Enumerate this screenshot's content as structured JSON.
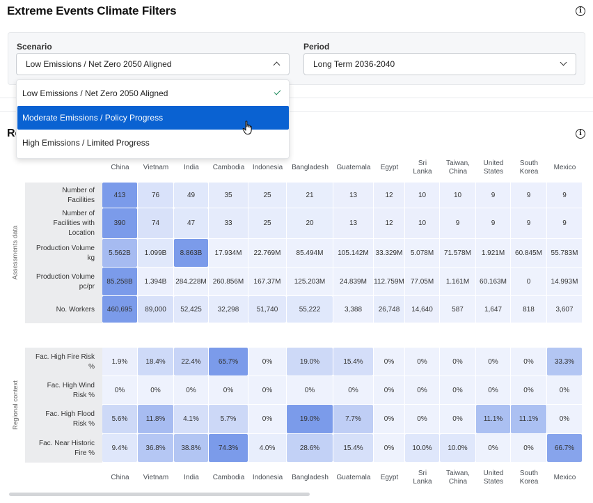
{
  "page_title": "Extreme Events Climate Filters",
  "filters": {
    "scenario": {
      "label": "Scenario",
      "value": "Low Emissions / Net Zero 2050 Aligned",
      "options": [
        "Low Emissions / Net Zero 2050 Aligned",
        "Moderate Emissions / Policy Progress",
        "High Emissions / Limited Progress"
      ],
      "checked_index": 0,
      "highlighted_index": 1
    },
    "period": {
      "label": "Period",
      "value": "Long Term 2036-2040"
    }
  },
  "section_title": "Re",
  "table": {
    "countries": [
      [
        "China"
      ],
      [
        "Vietnam"
      ],
      [
        "India"
      ],
      [
        "Cambodia"
      ],
      [
        "Indonesia"
      ],
      [
        "Bangladesh"
      ],
      [
        "Guatemala"
      ],
      [
        "Egypt"
      ],
      [
        "Sri",
        "Lanka"
      ],
      [
        "Taiwan,",
        "China"
      ],
      [
        "United",
        "States"
      ],
      [
        "South",
        "Korea"
      ],
      [
        "Mexico"
      ]
    ],
    "groups": [
      {
        "label": "Assessments data",
        "rows": [
          {
            "label": [
              "Number of",
              "Facilities"
            ],
            "values": [
              "413",
              "76",
              "49",
              "35",
              "25",
              "21",
              "13",
              "12",
              "10",
              "10",
              "9",
              "9",
              "9"
            ],
            "intensity": [
              1.0,
              0.18,
              0.12,
              0.08,
              0.06,
              0.05,
              0.03,
              0.03,
              0.02,
              0.02,
              0.02,
              0.02,
              0.02
            ]
          },
          {
            "label": [
              "Number of",
              "Facilities with",
              "Location"
            ],
            "values": [
              "390",
              "74",
              "47",
              "33",
              "25",
              "20",
              "13",
              "12",
              "10",
              "9",
              "9",
              "9",
              "9"
            ],
            "intensity": [
              1.0,
              0.19,
              0.12,
              0.08,
              0.06,
              0.05,
              0.03,
              0.03,
              0.03,
              0.02,
              0.02,
              0.02,
              0.02
            ]
          },
          {
            "label": [
              "Production Volume",
              "kg"
            ],
            "values": [
              "5.562B",
              "1.099B",
              "8.863B",
              "17.934M",
              "22.769M",
              "85.494M",
              "105.142M",
              "33.329M",
              "5.078M",
              "71.578M",
              "1.921M",
              "60.845M",
              "55.783M"
            ],
            "intensity": [
              0.63,
              0.12,
              1.0,
              0.0,
              0.0,
              0.01,
              0.01,
              0.0,
              0.0,
              0.01,
              0.0,
              0.01,
              0.01
            ]
          },
          {
            "label": [
              "Production Volume",
              "pc/pr"
            ],
            "values": [
              "85.258B",
              "1.394B",
              "284.228M",
              "260.856M",
              "167.37M",
              "125.203M",
              "24.839M",
              "112.759M",
              "77.05M",
              "1.161M",
              "60.163M",
              "0",
              "14.993M"
            ],
            "intensity": [
              1.0,
              0.02,
              0.0,
              0.0,
              0.0,
              0.0,
              0.0,
              0.0,
              0.0,
              0.0,
              0.0,
              0.0,
              0.0
            ]
          },
          {
            "label": [
              "No. Workers"
            ],
            "values": [
              "460,695",
              "89,000",
              "52,425",
              "32,298",
              "51,740",
              "55,222",
              "3,388",
              "26,748",
              "14,640",
              "587",
              "1,647",
              "818",
              "3,607"
            ],
            "intensity": [
              1.0,
              0.19,
              0.11,
              0.07,
              0.11,
              0.12,
              0.01,
              0.06,
              0.03,
              0.0,
              0.0,
              0.0,
              0.01
            ]
          }
        ]
      },
      {
        "label": "Regional context",
        "rows": [
          {
            "label": [
              "Fac. High Fire Risk",
              "%"
            ],
            "values": [
              "1.9%",
              "18.4%",
              "22.4%",
              "65.7%",
              "0%",
              "19.0%",
              "15.4%",
              "0%",
              "0%",
              "0%",
              "0%",
              "0%",
              "33.3%"
            ],
            "intensity": [
              0.03,
              0.28,
              0.34,
              1.0,
              0.0,
              0.29,
              0.23,
              0.0,
              0.0,
              0.0,
              0.0,
              0.0,
              0.51
            ]
          },
          {
            "label": [
              "Fac. High Wind",
              "Risk %"
            ],
            "values": [
              "0%",
              "0%",
              "0%",
              "0%",
              "0%",
              "0%",
              "0%",
              "0%",
              "0%",
              "0%",
              "0%",
              "0%",
              "0%"
            ],
            "intensity": [
              0,
              0,
              0,
              0,
              0,
              0,
              0,
              0,
              0,
              0,
              0,
              0,
              0
            ]
          },
          {
            "label": [
              "Fac. High Flood",
              "Risk %"
            ],
            "values": [
              "5.6%",
              "11.8%",
              "4.1%",
              "5.7%",
              "0%",
              "19.0%",
              "7.7%",
              "0%",
              "0%",
              "0%",
              "11.1%",
              "11.1%",
              "0%"
            ],
            "intensity": [
              0.29,
              0.62,
              0.22,
              0.3,
              0.0,
              1.0,
              0.41,
              0.0,
              0.0,
              0.0,
              0.58,
              0.58,
              0.0
            ]
          },
          {
            "label": [
              "Fac. Near Historic",
              "Fire %"
            ],
            "values": [
              "9.4%",
              "36.8%",
              "38.8%",
              "74.3%",
              "4.0%",
              "28.6%",
              "15.4%",
              "0%",
              "10.0%",
              "10.0%",
              "0%",
              "0%",
              "66.7%"
            ],
            "intensity": [
              0.13,
              0.5,
              0.52,
              1.0,
              0.05,
              0.38,
              0.21,
              0.0,
              0.13,
              0.13,
              0.0,
              0.0,
              0.9
            ]
          }
        ]
      }
    ]
  },
  "colors": {
    "accent": "#0a62d2",
    "heat_low": "#eef2fd",
    "heat_high": "#7b9bea"
  },
  "icons": [
    "info-icon",
    "chevron-up-icon",
    "chevron-down-icon",
    "check-icon",
    "hand-cursor-icon"
  ]
}
